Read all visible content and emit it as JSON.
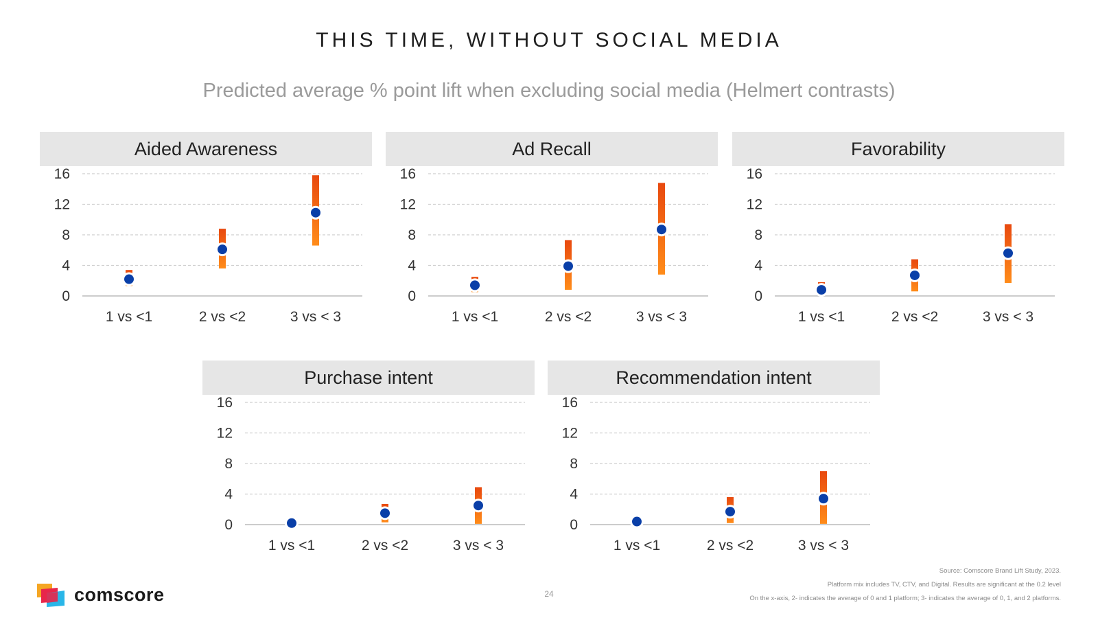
{
  "title": "THIS TIME, WITHOUT SOCIAL MEDIA",
  "subtitle": "Predicted average % point lift when excluding social media (Helmert contrasts)",
  "colors": {
    "bar_top": "#e8490f",
    "bar_bottom": "#ff8c1a",
    "point": "#0a3fa8",
    "grid": "#cfcfcf",
    "header_bg": "#e6e6e6"
  },
  "chart_data": [
    {
      "type": "scatter",
      "title": "Aided Awareness",
      "categories": [
        "1 vs <1",
        "2 vs <2",
        "3 vs < 3"
      ],
      "values": [
        2.2,
        6.1,
        10.9
      ],
      "lower": [
        1.3,
        3.6,
        6.6
      ],
      "upper": [
        3.4,
        8.8,
        15.8
      ],
      "yticks": [
        0,
        4,
        8,
        12,
        16
      ],
      "ylim": [
        0,
        16
      ]
    },
    {
      "type": "scatter",
      "title": "Ad Recall",
      "categories": [
        "1 vs <1",
        "2 vs <2",
        "3 vs < 3"
      ],
      "values": [
        1.4,
        3.9,
        8.7
      ],
      "lower": [
        0.5,
        0.8,
        2.8
      ],
      "upper": [
        2.5,
        7.3,
        14.8
      ],
      "yticks": [
        0,
        4,
        8,
        12,
        16
      ],
      "ylim": [
        0,
        16
      ]
    },
    {
      "type": "scatter",
      "title": "Favorability",
      "categories": [
        "1 vs <1",
        "2 vs <2",
        "3 vs < 3"
      ],
      "values": [
        0.8,
        2.7,
        5.6
      ],
      "lower": [
        0.4,
        0.6,
        1.7
      ],
      "upper": [
        1.8,
        4.8,
        9.4
      ],
      "yticks": [
        0,
        4,
        8,
        12,
        16
      ],
      "ylim": [
        0,
        16
      ]
    },
    {
      "type": "scatter",
      "title": "Purchase intent",
      "categories": [
        "1 vs <1",
        "2 vs <2",
        "3 vs < 3"
      ],
      "values": [
        0.2,
        1.5,
        2.5
      ],
      "lower": [
        0.1,
        0.3,
        0.1
      ],
      "upper": [
        0.5,
        2.7,
        4.9
      ],
      "yticks": [
        0,
        4,
        8,
        12,
        16
      ],
      "ylim": [
        0,
        16
      ]
    },
    {
      "type": "scatter",
      "title": "Recommendation intent",
      "categories": [
        "1 vs <1",
        "2 vs <2",
        "3 vs < 3"
      ],
      "values": [
        0.4,
        1.7,
        3.4
      ],
      "lower": [
        0.1,
        0.2,
        0.1
      ],
      "upper": [
        1.0,
        3.6,
        7.0
      ],
      "yticks": [
        0,
        4,
        8,
        12,
        16
      ],
      "ylim": [
        0,
        16
      ]
    }
  ],
  "footer": {
    "source": "Source: Comscore Brand Lift Study, 2023.",
    "note1": "Platform mix includes TV, CTV, and Digital. Results are significant at the 0.2 level",
    "note2": "On the x-axis, 2- indicates the average of 0 and 1 platform; 3- indicates the average of 0, 1,  and 2 platforms."
  },
  "page_number": "24",
  "logo": {
    "text": "comscore"
  }
}
